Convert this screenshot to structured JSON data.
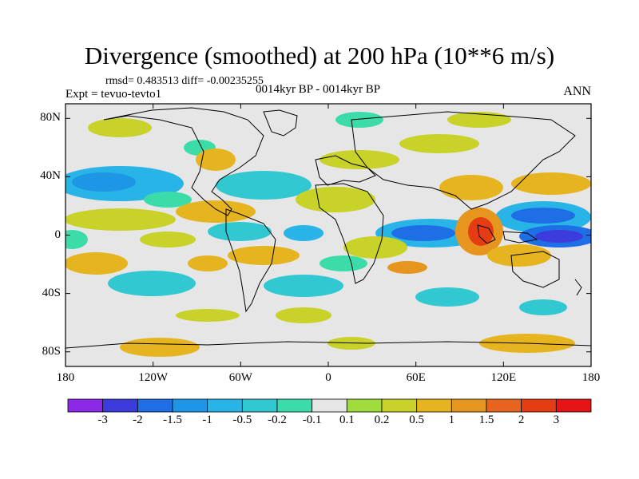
{
  "title": "Divergence (smoothed) at 200 hPa (10**6 m/s)",
  "stats": "rmsd= 0.483513 diff= -0.00235255",
  "experiment": "Expt = tevuo-tevto1",
  "period": "0014kyr BP - 0014kyr BP",
  "season": "ANN",
  "map": {
    "lon_range": [
      -180,
      180
    ],
    "lat_range": [
      -90,
      90
    ],
    "background_color": "#e6e6e6",
    "y_ticks": [
      "80N",
      "40N",
      "0",
      "40S",
      "80S"
    ],
    "x_ticks": [
      "180",
      "120W",
      "60W",
      "0",
      "60E",
      "120E",
      "180"
    ]
  },
  "colorbar": {
    "labels": [
      "-3",
      "-2",
      "-1.5",
      "-1",
      "-0.5",
      "-0.2",
      "-0.1",
      "0.1",
      "0.2",
      "0.5",
      "1",
      "1.5",
      "2",
      "3"
    ],
    "colors": [
      "#8c28e6",
      "#3c3cdc",
      "#1e6ee6",
      "#1e96e6",
      "#28b4e6",
      "#32c8d2",
      "#3cdcaa",
      "#e6e6e6",
      "#a0dc3c",
      "#c8d228",
      "#e6b41e",
      "#e6961e",
      "#e6641e",
      "#e63c14",
      "#e61414"
    ]
  }
}
